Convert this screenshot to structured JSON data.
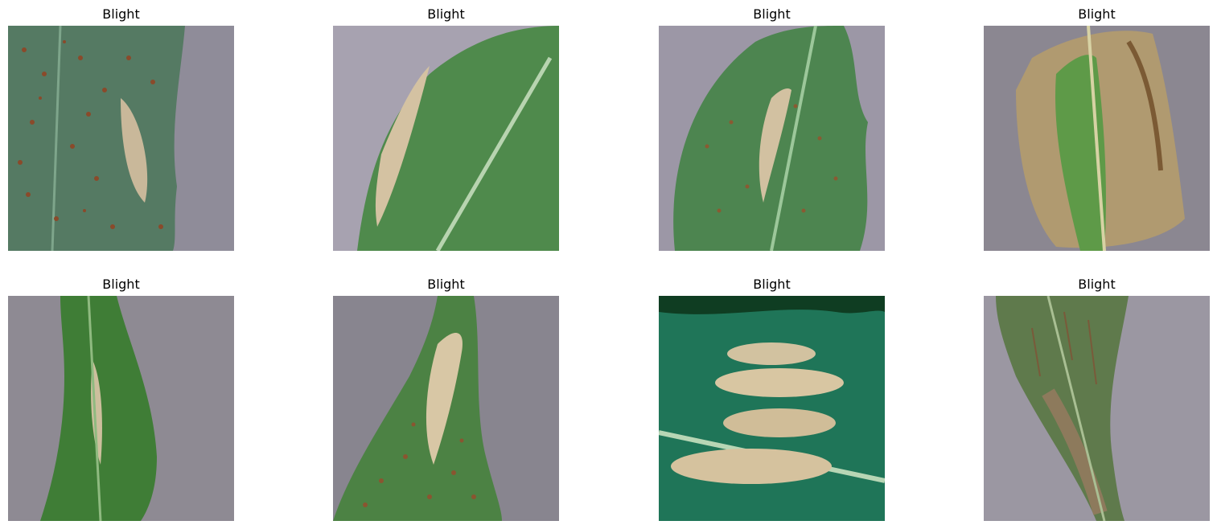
{
  "figure": {
    "panels": [
      {
        "title": "Blight",
        "image": "corn-leaf-rust-spots-photo"
      },
      {
        "title": "Blight",
        "image": "corn-leaf-lesion-diagonal-photo"
      },
      {
        "title": "Blight",
        "image": "corn-leaf-center-lesion-photo"
      },
      {
        "title": "Blight",
        "image": "corn-leaf-dried-brown-photo"
      },
      {
        "title": "Blight",
        "image": "corn-leaf-narrow-lesion-photo"
      },
      {
        "title": "Blight",
        "image": "corn-leaf-tan-lesion-photo"
      },
      {
        "title": "Blight",
        "image": "corn-leaf-multiple-lesions-photo"
      },
      {
        "title": "Blight",
        "image": "corn-leaf-streaked-dry-photo"
      }
    ]
  }
}
